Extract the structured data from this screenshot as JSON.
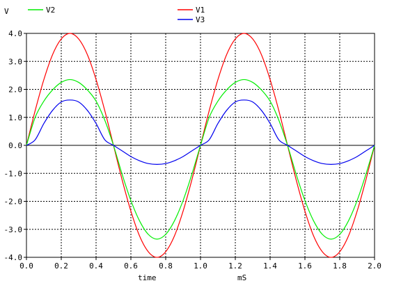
{
  "chart_data": {
    "type": "line",
    "ylabel": "V",
    "xlabel": "time",
    "xunit": "mS",
    "xlim": [
      0.0,
      2.0
    ],
    "ylim": [
      -4.0,
      4.0
    ],
    "xticks": [
      0.0,
      0.2,
      0.4,
      0.6,
      0.8,
      1.0,
      1.2,
      1.4,
      1.6,
      1.8,
      2.0
    ],
    "yticks": [
      4.0,
      3.0,
      2.0,
      1.0,
      0.0,
      -1.0,
      -2.0,
      -3.0,
      -4.0
    ],
    "xtick_labels": [
      "0.0",
      "0.2",
      "0.4",
      "0.6",
      "0.8",
      "1.0",
      "1.2",
      "1.4",
      "1.6",
      "1.8",
      "2.0"
    ],
    "ytick_labels": [
      "4.0",
      "3.0",
      "2.0",
      "1.0",
      "0.0",
      "-1.0",
      "-2.0",
      "-3.0",
      "-4.0"
    ],
    "grid": true,
    "series": [
      {
        "name": "V1",
        "color": "#ff0000",
        "x": [
          0.0,
          0.05,
          0.1,
          0.15,
          0.2,
          0.25,
          0.3,
          0.35,
          0.4,
          0.45,
          0.5,
          0.55,
          0.6,
          0.65,
          0.7,
          0.75,
          0.8,
          0.85,
          0.9,
          0.95,
          1.0,
          1.05,
          1.1,
          1.15,
          1.2,
          1.25,
          1.3,
          1.35,
          1.4,
          1.45,
          1.5,
          1.55,
          1.6,
          1.65,
          1.7,
          1.75,
          1.8,
          1.85,
          1.9,
          1.95,
          2.0
        ],
        "values": [
          0.0,
          1.24,
          2.35,
          3.24,
          3.8,
          4.0,
          3.8,
          3.24,
          2.35,
          1.24,
          0.0,
          -1.24,
          -2.35,
          -3.24,
          -3.8,
          -4.0,
          -3.8,
          -3.24,
          -2.35,
          -1.24,
          0.0,
          1.24,
          2.35,
          3.24,
          3.8,
          4.0,
          3.8,
          3.24,
          2.35,
          1.24,
          0.0,
          -1.24,
          -2.35,
          -3.24,
          -3.8,
          -4.0,
          -3.8,
          -3.24,
          -2.35,
          -1.24,
          0.0
        ]
      },
      {
        "name": "V2",
        "color": "#00ee00",
        "x": [
          0.0,
          0.05,
          0.1,
          0.15,
          0.2,
          0.25,
          0.3,
          0.35,
          0.4,
          0.45,
          0.5,
          0.55,
          0.6,
          0.65,
          0.7,
          0.75,
          0.8,
          0.85,
          0.9,
          0.95,
          1.0,
          1.05,
          1.1,
          1.15,
          1.2,
          1.25,
          1.3,
          1.35,
          1.4,
          1.45,
          1.5,
          1.55,
          1.6,
          1.65,
          1.7,
          1.75,
          1.8,
          1.85,
          1.9,
          1.95,
          2.0
        ],
        "values": [
          0.0,
          1.0,
          1.58,
          1.98,
          2.25,
          2.35,
          2.25,
          1.98,
          1.58,
          0.9,
          0.0,
          -1.04,
          -1.97,
          -2.7,
          -3.18,
          -3.35,
          -3.18,
          -2.7,
          -1.97,
          -1.04,
          0.0,
          1.0,
          1.58,
          1.98,
          2.25,
          2.35,
          2.25,
          1.98,
          1.58,
          0.9,
          0.0,
          -1.04,
          -1.97,
          -2.7,
          -3.18,
          -3.35,
          -3.18,
          -2.7,
          -1.97,
          -1.04,
          0.0
        ]
      },
      {
        "name": "V3",
        "color": "#0000ee",
        "x": [
          0.0,
          0.05,
          0.1,
          0.15,
          0.2,
          0.25,
          0.3,
          0.35,
          0.4,
          0.45,
          0.5,
          0.55,
          0.6,
          0.65,
          0.7,
          0.75,
          0.8,
          0.85,
          0.9,
          0.95,
          1.0,
          1.05,
          1.1,
          1.15,
          1.2,
          1.25,
          1.3,
          1.35,
          1.4,
          1.45,
          1.5,
          1.55,
          1.6,
          1.65,
          1.7,
          1.75,
          1.8,
          1.85,
          1.9,
          1.95,
          2.0
        ],
        "values": [
          0.0,
          0.2,
          0.78,
          1.25,
          1.55,
          1.62,
          1.55,
          1.25,
          0.78,
          0.2,
          0.0,
          -0.2,
          -0.4,
          -0.55,
          -0.65,
          -0.68,
          -0.65,
          -0.55,
          -0.4,
          -0.2,
          0.0,
          0.2,
          0.78,
          1.25,
          1.55,
          1.62,
          1.55,
          1.25,
          0.78,
          0.2,
          0.0,
          -0.2,
          -0.4,
          -0.55,
          -0.65,
          -0.68,
          -0.65,
          -0.55,
          -0.4,
          -0.2,
          0.0
        ]
      }
    ]
  }
}
